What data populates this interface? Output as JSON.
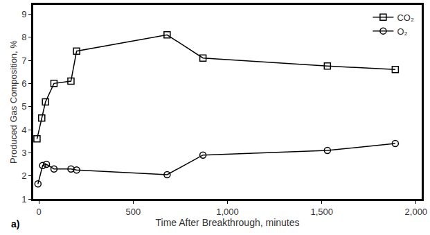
{
  "chart_data": {
    "type": "line",
    "x_label": "Time After Breakthrough, minutes",
    "y_label": "Produced Gas Composition, %",
    "annotations": [
      "a)"
    ],
    "series": [
      {
        "name": "CO₂",
        "color": "#000000",
        "marker": "square",
        "line_style": "solid",
        "x": [
          -10,
          15,
          35,
          80,
          170,
          200,
          680,
          870,
          1530,
          1890
        ],
        "values": [
          3.6,
          4.5,
          5.2,
          6.0,
          6.1,
          7.4,
          8.1,
          7.1,
          6.75,
          6.6
        ]
      },
      {
        "name": "O₂",
        "color": "#000000",
        "marker": "circle",
        "line_style": "solid",
        "x": [
          -5,
          20,
          40,
          80,
          170,
          200,
          680,
          870,
          1530,
          1890
        ],
        "values": [
          1.65,
          2.45,
          2.5,
          2.3,
          2.3,
          2.25,
          2.05,
          2.9,
          3.1,
          3.4
        ]
      }
    ],
    "xlim": [
      -30,
      2030
    ],
    "xticks": [
      0,
      500,
      {
        "value": 1000,
        "label": "1,000"
      },
      {
        "value": 1500,
        "label": "1,500"
      },
      {
        "value": 2000,
        "label": "2,000"
      }
    ],
    "ylim": [
      1,
      9.4
    ],
    "yticks": [
      1,
      2,
      3,
      4,
      5,
      6,
      7,
      8,
      9
    ],
    "grid": false,
    "legend": "top-right"
  }
}
